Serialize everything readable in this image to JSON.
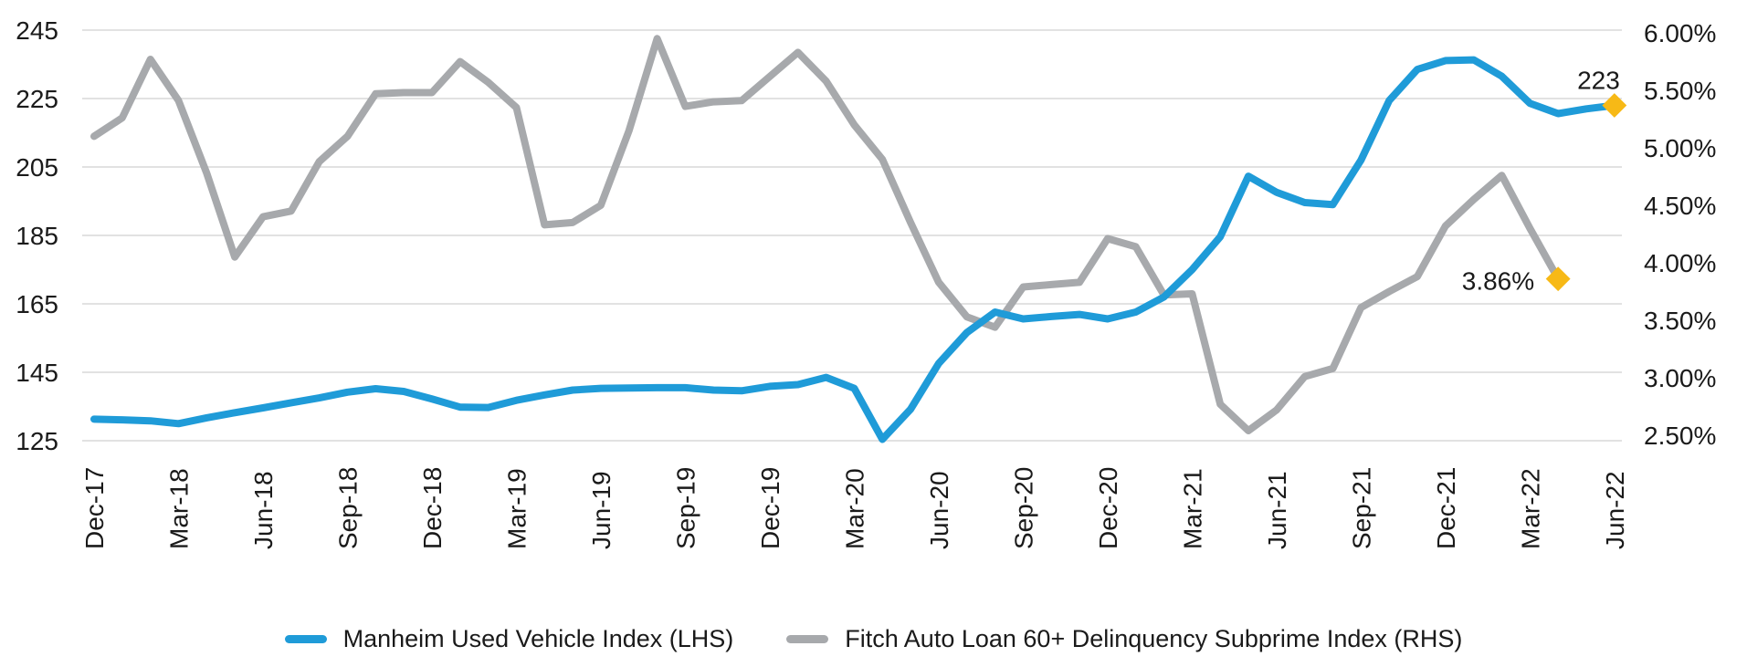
{
  "chart_data": {
    "type": "line",
    "title": "",
    "x_start": "Dec-17",
    "x_interval": "monthly",
    "x_tick_labels": [
      "Dec-17",
      "Mar-18",
      "Jun-18",
      "Sep-18",
      "Dec-18",
      "Mar-19",
      "Jun-19",
      "Sep-19",
      "Dec-19",
      "Mar-20",
      "Jun-20",
      "Sep-20",
      "Dec-20",
      "Mar-21",
      "Jun-21",
      "Sep-21",
      "Dec-21",
      "Mar-22",
      "Jun-22"
    ],
    "grid": "horizontal",
    "legend_position": "bottom",
    "gridline_color": "#D9D9D9",
    "text_color": "#1A1A1A",
    "marker_color": "#F7B916",
    "left_axis": {
      "min": 125,
      "max": 245,
      "step": 20,
      "labels": [
        "245",
        "225",
        "205",
        "185",
        "165",
        "145",
        "125"
      ]
    },
    "right_axis": {
      "min": 2.5,
      "max": 6.0,
      "step": 0.5,
      "labels": [
        "6.00%",
        "5.50%",
        "5.00%",
        "4.50%",
        "4.00%",
        "3.50%",
        "3.00%",
        "2.50%"
      ]
    },
    "series": [
      {
        "name": "Manheim Used Vehicle Index (LHS)",
        "axis": "left",
        "color": "#1F9BD8",
        "end_month": "Jun-22",
        "end_label": "223",
        "values": [
          131.3,
          131.1,
          130.8,
          130.0,
          131.7,
          133.2,
          134.6,
          136.1,
          137.5,
          139.2,
          140.2,
          139.4,
          137.2,
          134.8,
          134.7,
          136.8,
          138.4,
          139.8,
          140.3,
          140.4,
          140.5,
          140.5,
          139.8,
          139.6,
          140.9,
          141.4,
          143.5,
          140.3,
          125.4,
          134.2,
          147.6,
          156.6,
          162.6,
          160.6,
          161.3,
          161.9,
          160.6,
          162.6,
          167.0,
          175.0,
          184.6,
          202.3,
          197.6,
          194.6,
          194.0,
          207.0,
          224.4,
          233.5,
          236.1,
          236.3,
          231.5,
          223.6,
          220.6,
          222.0,
          223.0
        ]
      },
      {
        "name": "Fitch Auto Loan 60+ Delinquency Subprime Index (RHS)",
        "axis": "right",
        "color": "#A7A9AC",
        "end_month": "Apr-22",
        "end_label": "3.86%",
        "values": [
          5.1,
          5.26,
          5.77,
          5.41,
          4.78,
          4.05,
          4.4,
          4.45,
          4.88,
          5.1,
          5.47,
          5.48,
          5.48,
          5.75,
          5.57,
          5.35,
          4.33,
          4.35,
          4.5,
          5.15,
          5.95,
          5.36,
          5.4,
          5.41,
          5.62,
          5.83,
          5.58,
          5.2,
          4.9,
          4.35,
          3.83,
          3.53,
          3.44,
          3.79,
          3.81,
          3.83,
          4.21,
          4.14,
          3.72,
          3.73,
          2.77,
          2.54,
          2.72,
          3.01,
          3.08,
          3.61,
          3.75,
          3.88,
          4.32,
          4.55,
          4.76,
          4.3,
          3.86
        ]
      }
    ],
    "annotations": [
      {
        "text": "223",
        "series": 0
      },
      {
        "text": "3.86%",
        "series": 1
      }
    ]
  }
}
